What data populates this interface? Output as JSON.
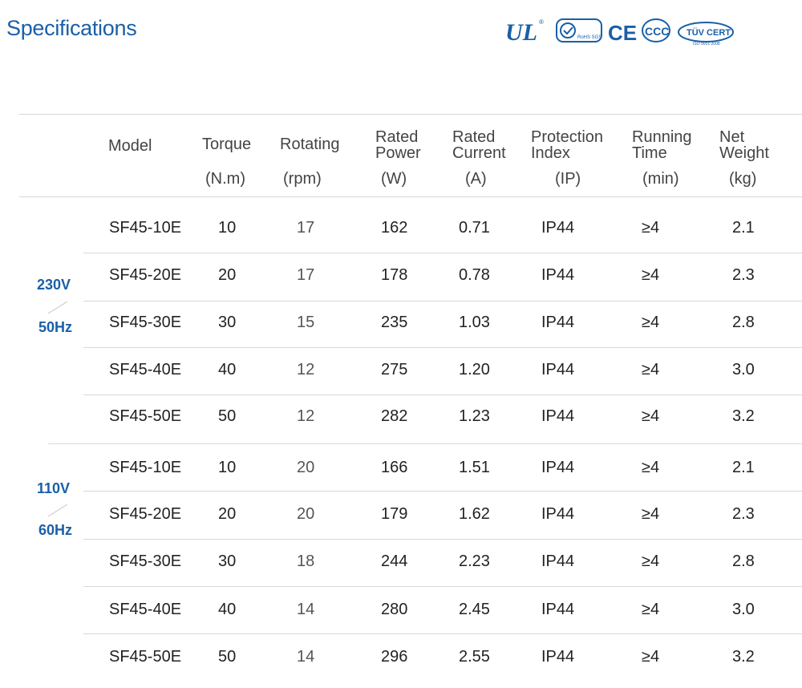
{
  "title": "Specifications",
  "certifications": [
    {
      "icon": "ul-mark-icon",
      "label": "UL"
    },
    {
      "icon": "rohs-sgs-icon",
      "label": "RoHS SGS"
    },
    {
      "icon": "ce-mark-icon",
      "label": "CE"
    },
    {
      "icon": "ccc-mark-icon",
      "label": "CCC"
    },
    {
      "icon": "tuv-cert-icon",
      "label": "TÜV CERT",
      "sub": "ISO 9001 2008"
    }
  ],
  "colors": {
    "accent": "#1a5fa8",
    "rule": "#d8d8d8",
    "text": "#222222"
  },
  "headers": {
    "model": {
      "line1": "Model",
      "unit": ""
    },
    "torque": {
      "line1": "Torque",
      "unit": "(N.m)"
    },
    "rotating": {
      "line1": "Rotating",
      "unit": "(rpm)"
    },
    "power": {
      "line1": "Rated",
      "line2": "Power",
      "unit": "(W)"
    },
    "current": {
      "line1": "Rated",
      "line2": "Current",
      "unit": "(A)"
    },
    "protection": {
      "line1": "Protection",
      "line2": "Index",
      "unit": "(IP)"
    },
    "running": {
      "line1": "Running",
      "line2": "Time",
      "unit": "(min)"
    },
    "weight": {
      "line1": "Net",
      "line2": "Weight",
      "unit": "(kg)"
    }
  },
  "groups": [
    {
      "voltage": "230V",
      "frequency": "50Hz",
      "rows": [
        {
          "model": "SF45-10E",
          "torque": "10",
          "rotating": "17",
          "power": "162",
          "current": "0.71",
          "protection": "IP44",
          "running": "≥4",
          "weight": "2.1"
        },
        {
          "model": "SF45-20E",
          "torque": "20",
          "rotating": "17",
          "power": "178",
          "current": "0.78",
          "protection": "IP44",
          "running": "≥4",
          "weight": "2.3"
        },
        {
          "model": "SF45-30E",
          "torque": "30",
          "rotating": "15",
          "power": "235",
          "current": "1.03",
          "protection": "IP44",
          "running": "≥4",
          "weight": "2.8"
        },
        {
          "model": "SF45-40E",
          "torque": "40",
          "rotating": "12",
          "power": "275",
          "current": "1.20",
          "protection": "IP44",
          "running": "≥4",
          "weight": "3.0"
        },
        {
          "model": "SF45-50E",
          "torque": "50",
          "rotating": "12",
          "power": "282",
          "current": "1.23",
          "protection": "IP44",
          "running": "≥4",
          "weight": "3.2"
        }
      ]
    },
    {
      "voltage": "110V",
      "frequency": "60Hz",
      "rows": [
        {
          "model": "SF45-10E",
          "torque": "10",
          "rotating": "20",
          "power": "166",
          "current": "1.51",
          "protection": "IP44",
          "running": "≥4",
          "weight": "2.1"
        },
        {
          "model": "SF45-20E",
          "torque": "20",
          "rotating": "20",
          "power": "179",
          "current": "1.62",
          "protection": "IP44",
          "running": "≥4",
          "weight": "2.3"
        },
        {
          "model": "SF45-30E",
          "torque": "30",
          "rotating": "18",
          "power": "244",
          "current": "2.23",
          "protection": "IP44",
          "running": "≥4",
          "weight": "2.8"
        },
        {
          "model": "SF45-40E",
          "torque": "40",
          "rotating": "14",
          "power": "280",
          "current": "2.45",
          "protection": "IP44",
          "running": "≥4",
          "weight": "3.0"
        },
        {
          "model": "SF45-50E",
          "torque": "50",
          "rotating": "14",
          "power": "296",
          "current": "2.55",
          "protection": "IP44",
          "running": "≥4",
          "weight": "3.2"
        }
      ]
    }
  ]
}
